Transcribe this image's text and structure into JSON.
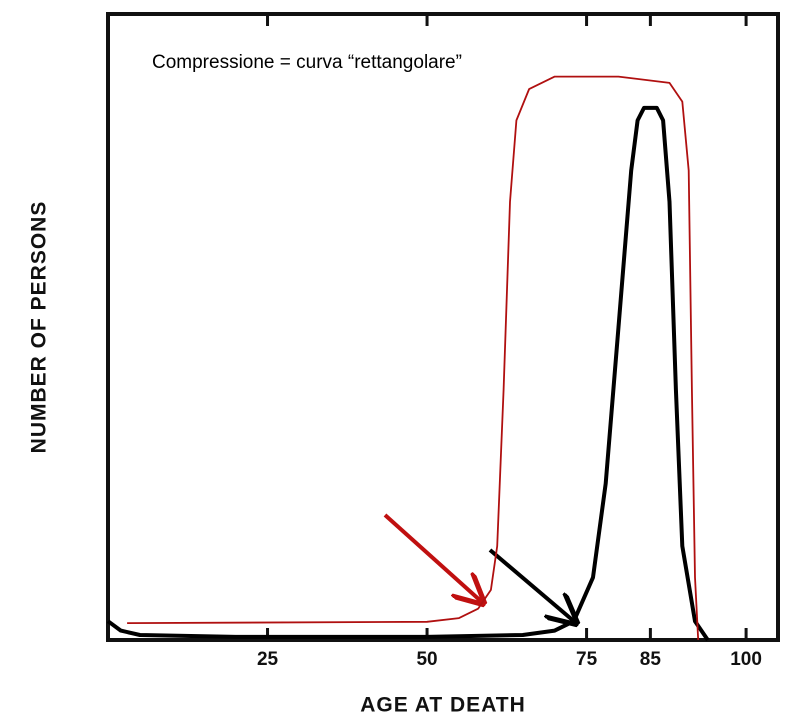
{
  "chart_data": {
    "type": "line",
    "xlabel": "AGE AT DEATH",
    "ylabel": "NUMBER OF PERSONS",
    "annotation": "Compressione = curva “rettangolare”",
    "xlim": [
      0,
      105
    ],
    "ylim": [
      0,
      100
    ],
    "xticks": [
      25,
      50,
      75,
      85,
      100
    ],
    "series": [
      {
        "color": "#000000",
        "x": [
          0,
          2,
          5,
          20,
          50,
          65,
          70,
          73,
          76,
          78,
          80,
          82,
          83,
          84,
          86,
          87,
          88,
          89,
          90,
          92,
          94
        ],
        "values": [
          3,
          1.5,
          0.8,
          0.5,
          0.5,
          0.8,
          1.5,
          3,
          10,
          25,
          50,
          75,
          83,
          85,
          85,
          83,
          70,
          40,
          15,
          3,
          0
        ]
      },
      {
        "color": "#b01010",
        "x": [
          3,
          50,
          55,
          58,
          60,
          61,
          62,
          63,
          64,
          66,
          70,
          80,
          88,
          90,
          91,
          91.5,
          92,
          92.5
        ],
        "values": [
          2.7,
          2.9,
          3.5,
          5,
          8,
          15,
          40,
          70,
          83,
          88,
          90,
          90,
          89,
          86,
          75,
          40,
          10,
          0
        ]
      }
    ]
  }
}
